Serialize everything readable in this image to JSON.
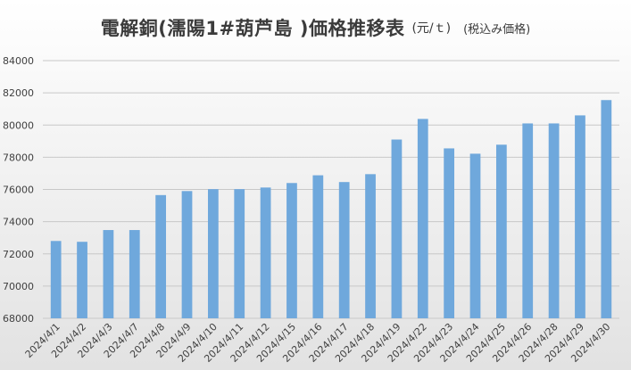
{
  "chart_data": {
    "type": "bar",
    "title": "電解銅(濡陽1#葫芦島 )価格推移表",
    "unit_label": "(元/ｔ)",
    "note": "(税込み価格)",
    "categories": [
      "2024/4/1",
      "2024/4/2",
      "2024/4/3",
      "2024/4/7",
      "2024/4/8",
      "2024/4/9",
      "2024/4/10",
      "2024/4/11",
      "2024/4/12",
      "2024/4/15",
      "2024/4/16",
      "2024/4/17",
      "2024/4/18",
      "2024/4/19",
      "2024/4/22",
      "2024/4/23",
      "2024/4/24",
      "2024/4/25",
      "2024/4/26",
      "2024/4/28",
      "2024/4/29",
      "2024/4/30"
    ],
    "values": [
      72800,
      72750,
      73480,
      73480,
      75650,
      75900,
      76020,
      76020,
      76120,
      76400,
      76880,
      76460,
      76950,
      79100,
      80380,
      78550,
      78220,
      78780,
      80100,
      80100,
      80600,
      81550
    ],
    "ylim": [
      68000,
      84000
    ],
    "yticks": [
      "68000",
      "70000",
      "72000",
      "74000",
      "76000",
      "78000",
      "80000",
      "82000",
      "84000"
    ],
    "xlabel": "",
    "ylabel": "",
    "grid": true,
    "bar_color": "#6fa8dc"
  }
}
